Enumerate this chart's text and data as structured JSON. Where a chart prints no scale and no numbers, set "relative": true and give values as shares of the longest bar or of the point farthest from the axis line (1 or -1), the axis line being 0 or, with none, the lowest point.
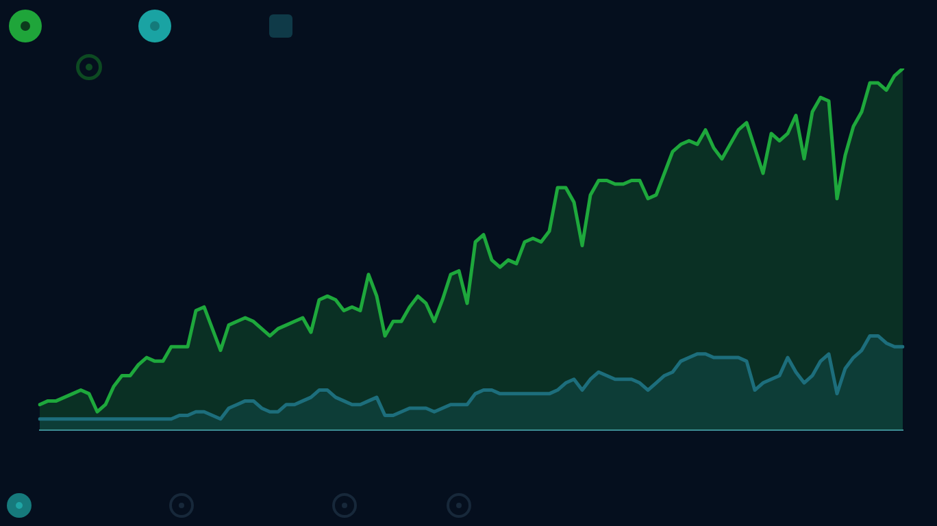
{
  "chart_data": {
    "type": "area",
    "relative": true,
    "categories": [
      null,
      null,
      null,
      null,
      null,
      null,
      null,
      null,
      null,
      null,
      null,
      null,
      null,
      null,
      null,
      null,
      null,
      null,
      null,
      null,
      null,
      null,
      null,
      null,
      null,
      null,
      null,
      null,
      null,
      null,
      null,
      null,
      null,
      null,
      null,
      null,
      null,
      null,
      null,
      null,
      null,
      null,
      null,
      null,
      null,
      null,
      null,
      null,
      null,
      null,
      null,
      null,
      null,
      null,
      null,
      null,
      null,
      null,
      null,
      null,
      null,
      null,
      null,
      null,
      null,
      null,
      null,
      null,
      null,
      null,
      null,
      null,
      null,
      null,
      null,
      null,
      null,
      null,
      null,
      null,
      null,
      null,
      null,
      null,
      null,
      null,
      null,
      null,
      null,
      null,
      null,
      null,
      null,
      null,
      null,
      null,
      null,
      null,
      null,
      null,
      null,
      null,
      null,
      null,
      null,
      null
    ],
    "series": [
      {
        "color": "#1ea83c",
        "values": [
          0.07,
          0.08,
          0.08,
          0.09,
          0.1,
          0.11,
          0.1,
          0.05,
          0.07,
          0.12,
          0.15,
          0.15,
          0.18,
          0.2,
          0.19,
          0.19,
          0.23,
          0.23,
          0.23,
          0.33,
          0.34,
          0.28,
          0.22,
          0.29,
          0.3,
          0.31,
          0.3,
          0.28,
          0.26,
          0.28,
          0.29,
          0.3,
          0.31,
          0.27,
          0.36,
          0.37,
          0.36,
          0.33,
          0.34,
          0.33,
          0.43,
          0.37,
          0.26,
          0.3,
          0.3,
          0.34,
          0.37,
          0.35,
          0.3,
          0.36,
          0.43,
          0.44,
          0.35,
          0.52,
          0.54,
          0.47,
          0.45,
          0.47,
          0.46,
          0.52,
          0.53,
          0.52,
          0.55,
          0.67,
          0.67,
          0.63,
          0.51,
          0.65,
          0.69,
          0.69,
          0.68,
          0.68,
          0.69,
          0.69,
          0.64,
          0.65,
          0.71,
          0.77,
          0.79,
          0.8,
          0.79,
          0.83,
          0.78,
          0.75,
          0.79,
          0.83,
          0.85,
          0.78,
          0.71,
          0.82,
          0.8,
          0.82,
          0.87,
          0.75,
          0.88,
          0.92,
          0.91,
          0.64,
          0.76,
          0.84,
          0.88,
          0.96,
          0.96,
          0.94,
          0.98,
          1
        ]
      },
      {
        "color": "#1d6e7c",
        "values": [
          0.03,
          0.03,
          0.03,
          0.03,
          0.03,
          0.03,
          0.03,
          0.03,
          0.03,
          0.03,
          0.03,
          0.03,
          0.03,
          0.03,
          0.03,
          0.03,
          0.03,
          0.04,
          0.04,
          0.05,
          0.05,
          0.04,
          0.03,
          0.06,
          0.07,
          0.08,
          0.08,
          0.06,
          0.05,
          0.05,
          0.07,
          0.07,
          0.08,
          0.09,
          0.11,
          0.11,
          0.09,
          0.08,
          0.07,
          0.07,
          0.08,
          0.09,
          0.04,
          0.04,
          0.05,
          0.06,
          0.06,
          0.06,
          0.05,
          0.06,
          0.07,
          0.07,
          0.07,
          0.1,
          0.11,
          0.11,
          0.1,
          0.1,
          0.1,
          0.1,
          0.1,
          0.1,
          0.1,
          0.11,
          0.13,
          0.14,
          0.11,
          0.14,
          0.16,
          0.15,
          0.14,
          0.14,
          0.14,
          0.13,
          0.11,
          0.13,
          0.15,
          0.16,
          0.19,
          0.2,
          0.21,
          0.21,
          0.2,
          0.2,
          0.2,
          0.2,
          0.19,
          0.11,
          0.13,
          0.14,
          0.15,
          0.2,
          0.16,
          0.13,
          0.15,
          0.19,
          0.21,
          0.1,
          0.17,
          0.2,
          0.22,
          0.26,
          0.26,
          0.24,
          0.23,
          0.23
        ]
      }
    ]
  }
}
